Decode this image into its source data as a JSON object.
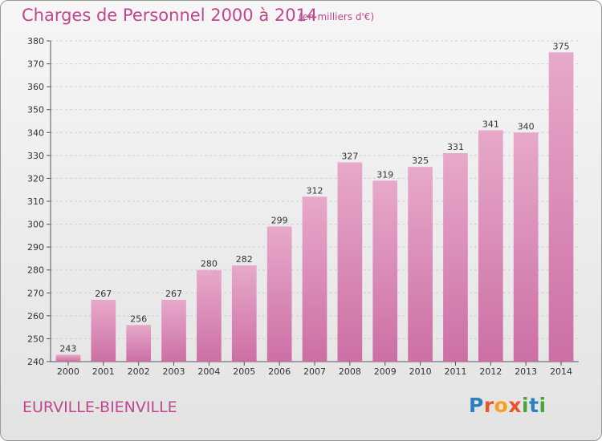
{
  "title": "Charges de Personnel 2000 à 2014",
  "subtitle": "(en milliers d'€)",
  "town": "EURVILLE-BIENVILLE",
  "logo": {
    "text": "Proxiti",
    "letters": [
      "P",
      "r",
      "o",
      "x",
      "i",
      "t",
      "i"
    ],
    "colors": [
      "#2e7fc1",
      "#e8562a",
      "#f4a21d",
      "#e8562a",
      "#4aa53c",
      "#2e7fc1",
      "#4aa53c"
    ]
  },
  "colors": {
    "bar": "#cc6fa4",
    "bar_light": "#e7a9ca",
    "title": "#c0468d"
  },
  "chart_data": {
    "type": "bar",
    "categories": [
      "2000",
      "2001",
      "2002",
      "2003",
      "2004",
      "2005",
      "2006",
      "2007",
      "2008",
      "2009",
      "2010",
      "2011",
      "2012",
      "2013",
      "2014"
    ],
    "values": [
      243,
      267,
      256,
      267,
      280,
      282,
      299,
      312,
      327,
      319,
      325,
      331,
      341,
      340,
      375
    ],
    "ylim": [
      240,
      380
    ],
    "yticks": [
      240,
      250,
      260,
      270,
      280,
      290,
      300,
      310,
      320,
      330,
      340,
      350,
      360,
      370,
      380
    ],
    "grid": true
  }
}
